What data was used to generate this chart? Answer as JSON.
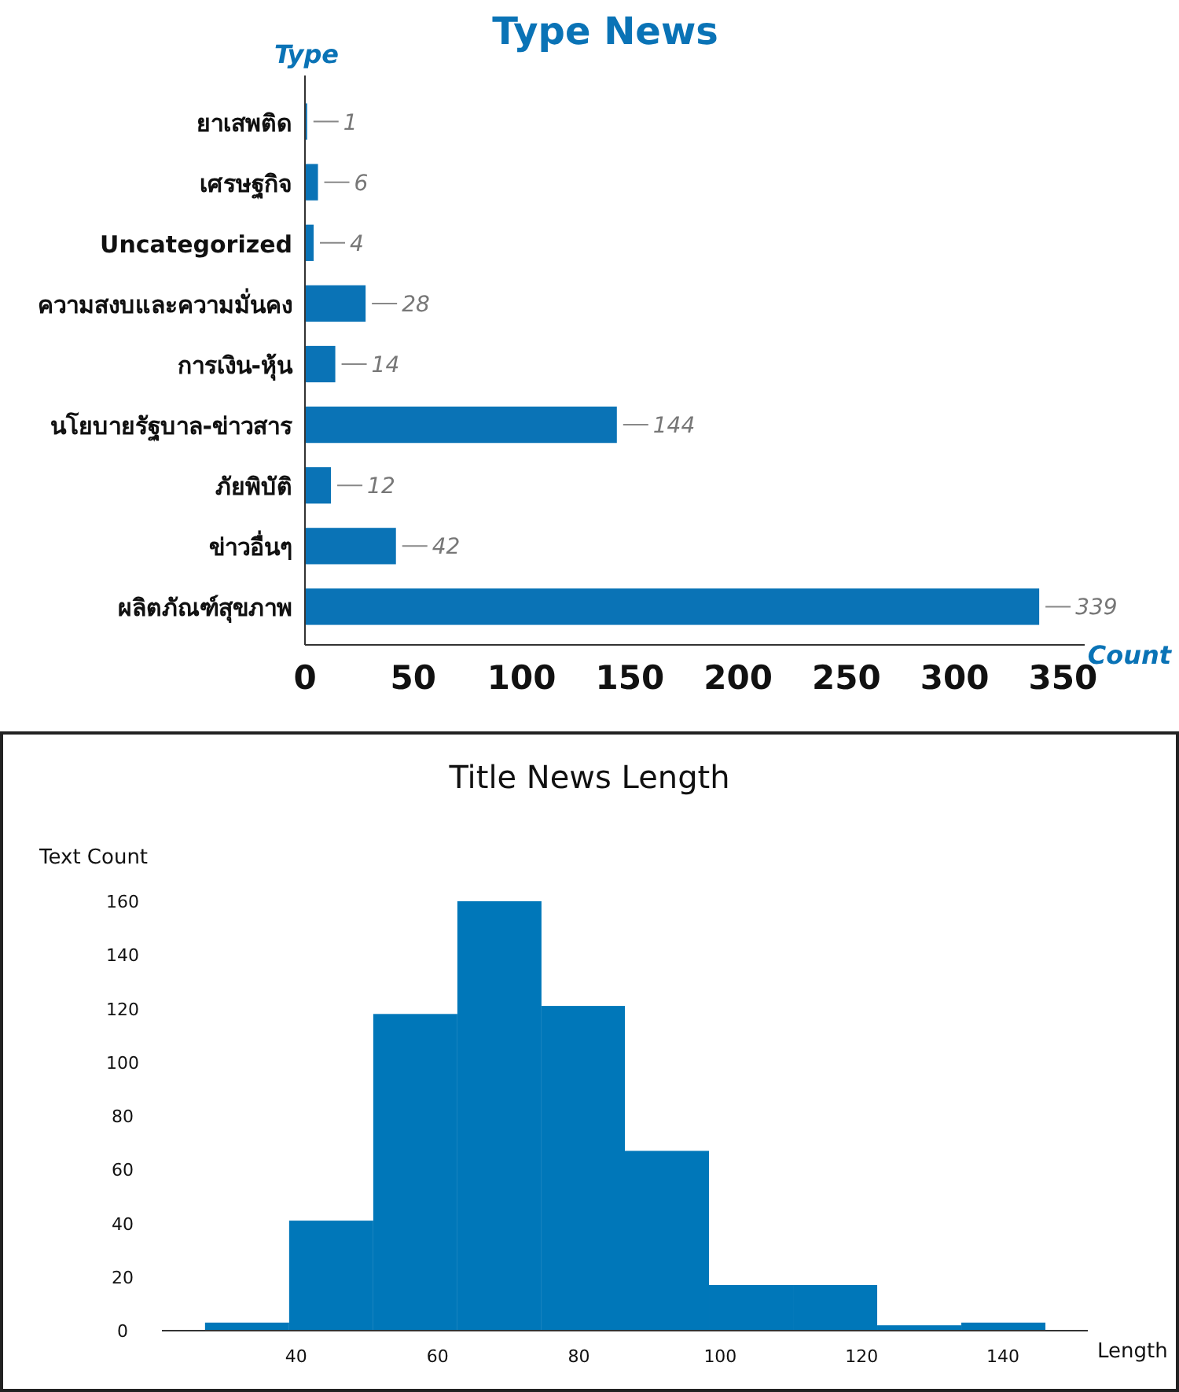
{
  "chart_data": [
    {
      "type": "bar",
      "orientation": "horizontal",
      "title": "Type News",
      "ylabel": "Type",
      "xlabel": "Count",
      "categories": [
        "ยาเสพติด",
        "เศรษฐกิจ",
        "Uncategorized",
        "ความสงบและความมั่นคง",
        "การเงิน-หุ้น",
        "นโยบายรัฐบาล-ข่าวสาร",
        "ภัยพิบัติ",
        "ข่าวอื่นๆ",
        "ผลิตภัณฑ์สุขภาพ"
      ],
      "values": [
        1,
        6,
        4,
        28,
        14,
        144,
        12,
        42,
        339
      ],
      "color": "#0a73b6",
      "data_labels": true,
      "xlim": [
        0,
        360
      ],
      "xticks": [
        0,
        50,
        100,
        150,
        200,
        250,
        300,
        350
      ]
    },
    {
      "type": "histogram",
      "title": "Title News Length",
      "ylabel": "Text Count",
      "xlabel": "Length",
      "bins": [
        27.1,
        39,
        50.9,
        62.8,
        74.7,
        86.5,
        98.4,
        110.3,
        122.2,
        134.1,
        146
      ],
      "values": [
        3,
        41,
        118,
        160,
        121,
        67,
        17,
        17,
        2,
        3
      ],
      "color": "#0077b9",
      "xlim": [
        21,
        152
      ],
      "xticks": [
        40,
        60,
        80,
        100,
        120,
        140
      ],
      "ylim": [
        0,
        160
      ],
      "yticks": [
        0,
        20,
        40,
        60,
        80,
        100,
        120,
        140,
        160
      ]
    }
  ]
}
